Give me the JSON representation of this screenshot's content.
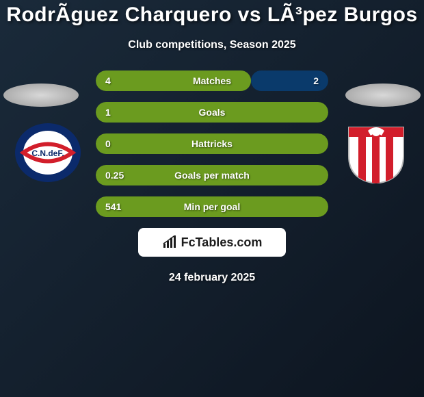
{
  "title": "RodrÃ­guez Charquero vs LÃ³pez Burgos",
  "subtitle": "Club competitions, Season 2025",
  "date": "24 february 2025",
  "logo_text": "FcTables.com",
  "colors": {
    "player_a": "#6b9b1f",
    "player_b": "#0a3a6b",
    "bg_grad_start": "#1a2a3a",
    "bg_grad_end": "#0d1520"
  },
  "crest_a": {
    "type": "nacional",
    "outer": "#0b2a6b",
    "inner": "#ffffff",
    "band": "#d21e2b",
    "text": "C.N.deF."
  },
  "crest_b": {
    "type": "river-plate-uy",
    "bg": "#ffffff",
    "stripes": "#d21e2b",
    "top": "#d21e2b"
  },
  "stats": [
    {
      "label": "Matches",
      "a": "4",
      "b": "2",
      "split_pct": 66.7
    },
    {
      "label": "Goals",
      "a": "1",
      "b": "",
      "split_pct": 100
    },
    {
      "label": "Hattricks",
      "a": "0",
      "b": "",
      "split_pct": 100
    },
    {
      "label": "Goals per match",
      "a": "0.25",
      "b": "",
      "split_pct": 100
    },
    {
      "label": "Min per goal",
      "a": "541",
      "b": "",
      "split_pct": 100
    }
  ]
}
